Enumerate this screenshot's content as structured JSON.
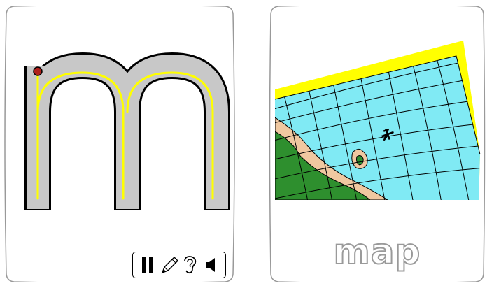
{
  "letter_card": {
    "letter": "m",
    "controls": [
      {
        "name": "pause-icon"
      },
      {
        "name": "pencil-icon"
      },
      {
        "name": "ear-icon"
      },
      {
        "name": "speaker-icon"
      }
    ]
  },
  "picture_card": {
    "word": "map",
    "image": "map-picture"
  },
  "colors": {
    "letter_fill": "#c8c8c8",
    "guide_line": "#ffff00",
    "start_dot": "#b0201c",
    "sea": "#80eaf4",
    "land": "#2e8f2e",
    "beach": "#f0c8a0",
    "map_edge": "#ffff00"
  }
}
